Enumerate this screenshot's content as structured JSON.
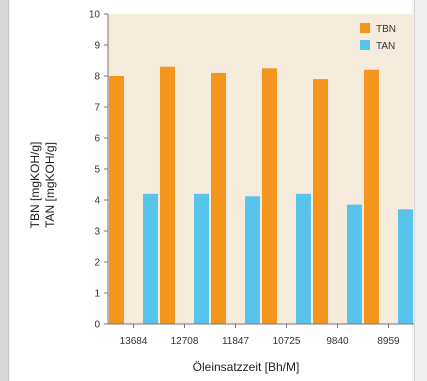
{
  "chart_data": {
    "type": "bar",
    "categories": [
      "13684",
      "12708",
      "11847",
      "10725",
      "9840",
      "8959"
    ],
    "series": [
      {
        "name": "TBN",
        "values": [
          8.0,
          8.3,
          8.1,
          8.25,
          7.9,
          8.2
        ]
      },
      {
        "name": "TAN",
        "values": [
          4.2,
          4.2,
          4.12,
          4.2,
          3.85,
          3.7
        ]
      }
    ],
    "title": "",
    "xlabel": "Öleinsatzzeit [Bh/M]",
    "ylabel_lines": [
      "TBN [mgKOH/g]",
      "TAN [mgKOH/g]"
    ],
    "ylim": [
      0,
      10
    ],
    "yticks": [
      0,
      1,
      2,
      3,
      4,
      5,
      6,
      7,
      8,
      9,
      10
    ],
    "grid": false,
    "legend_position": "top-right",
    "colors": {
      "plot_background": "#f6ecdd",
      "TBN": "#f2961e",
      "TAN": "#58c4ec",
      "axis": "#777777"
    }
  }
}
